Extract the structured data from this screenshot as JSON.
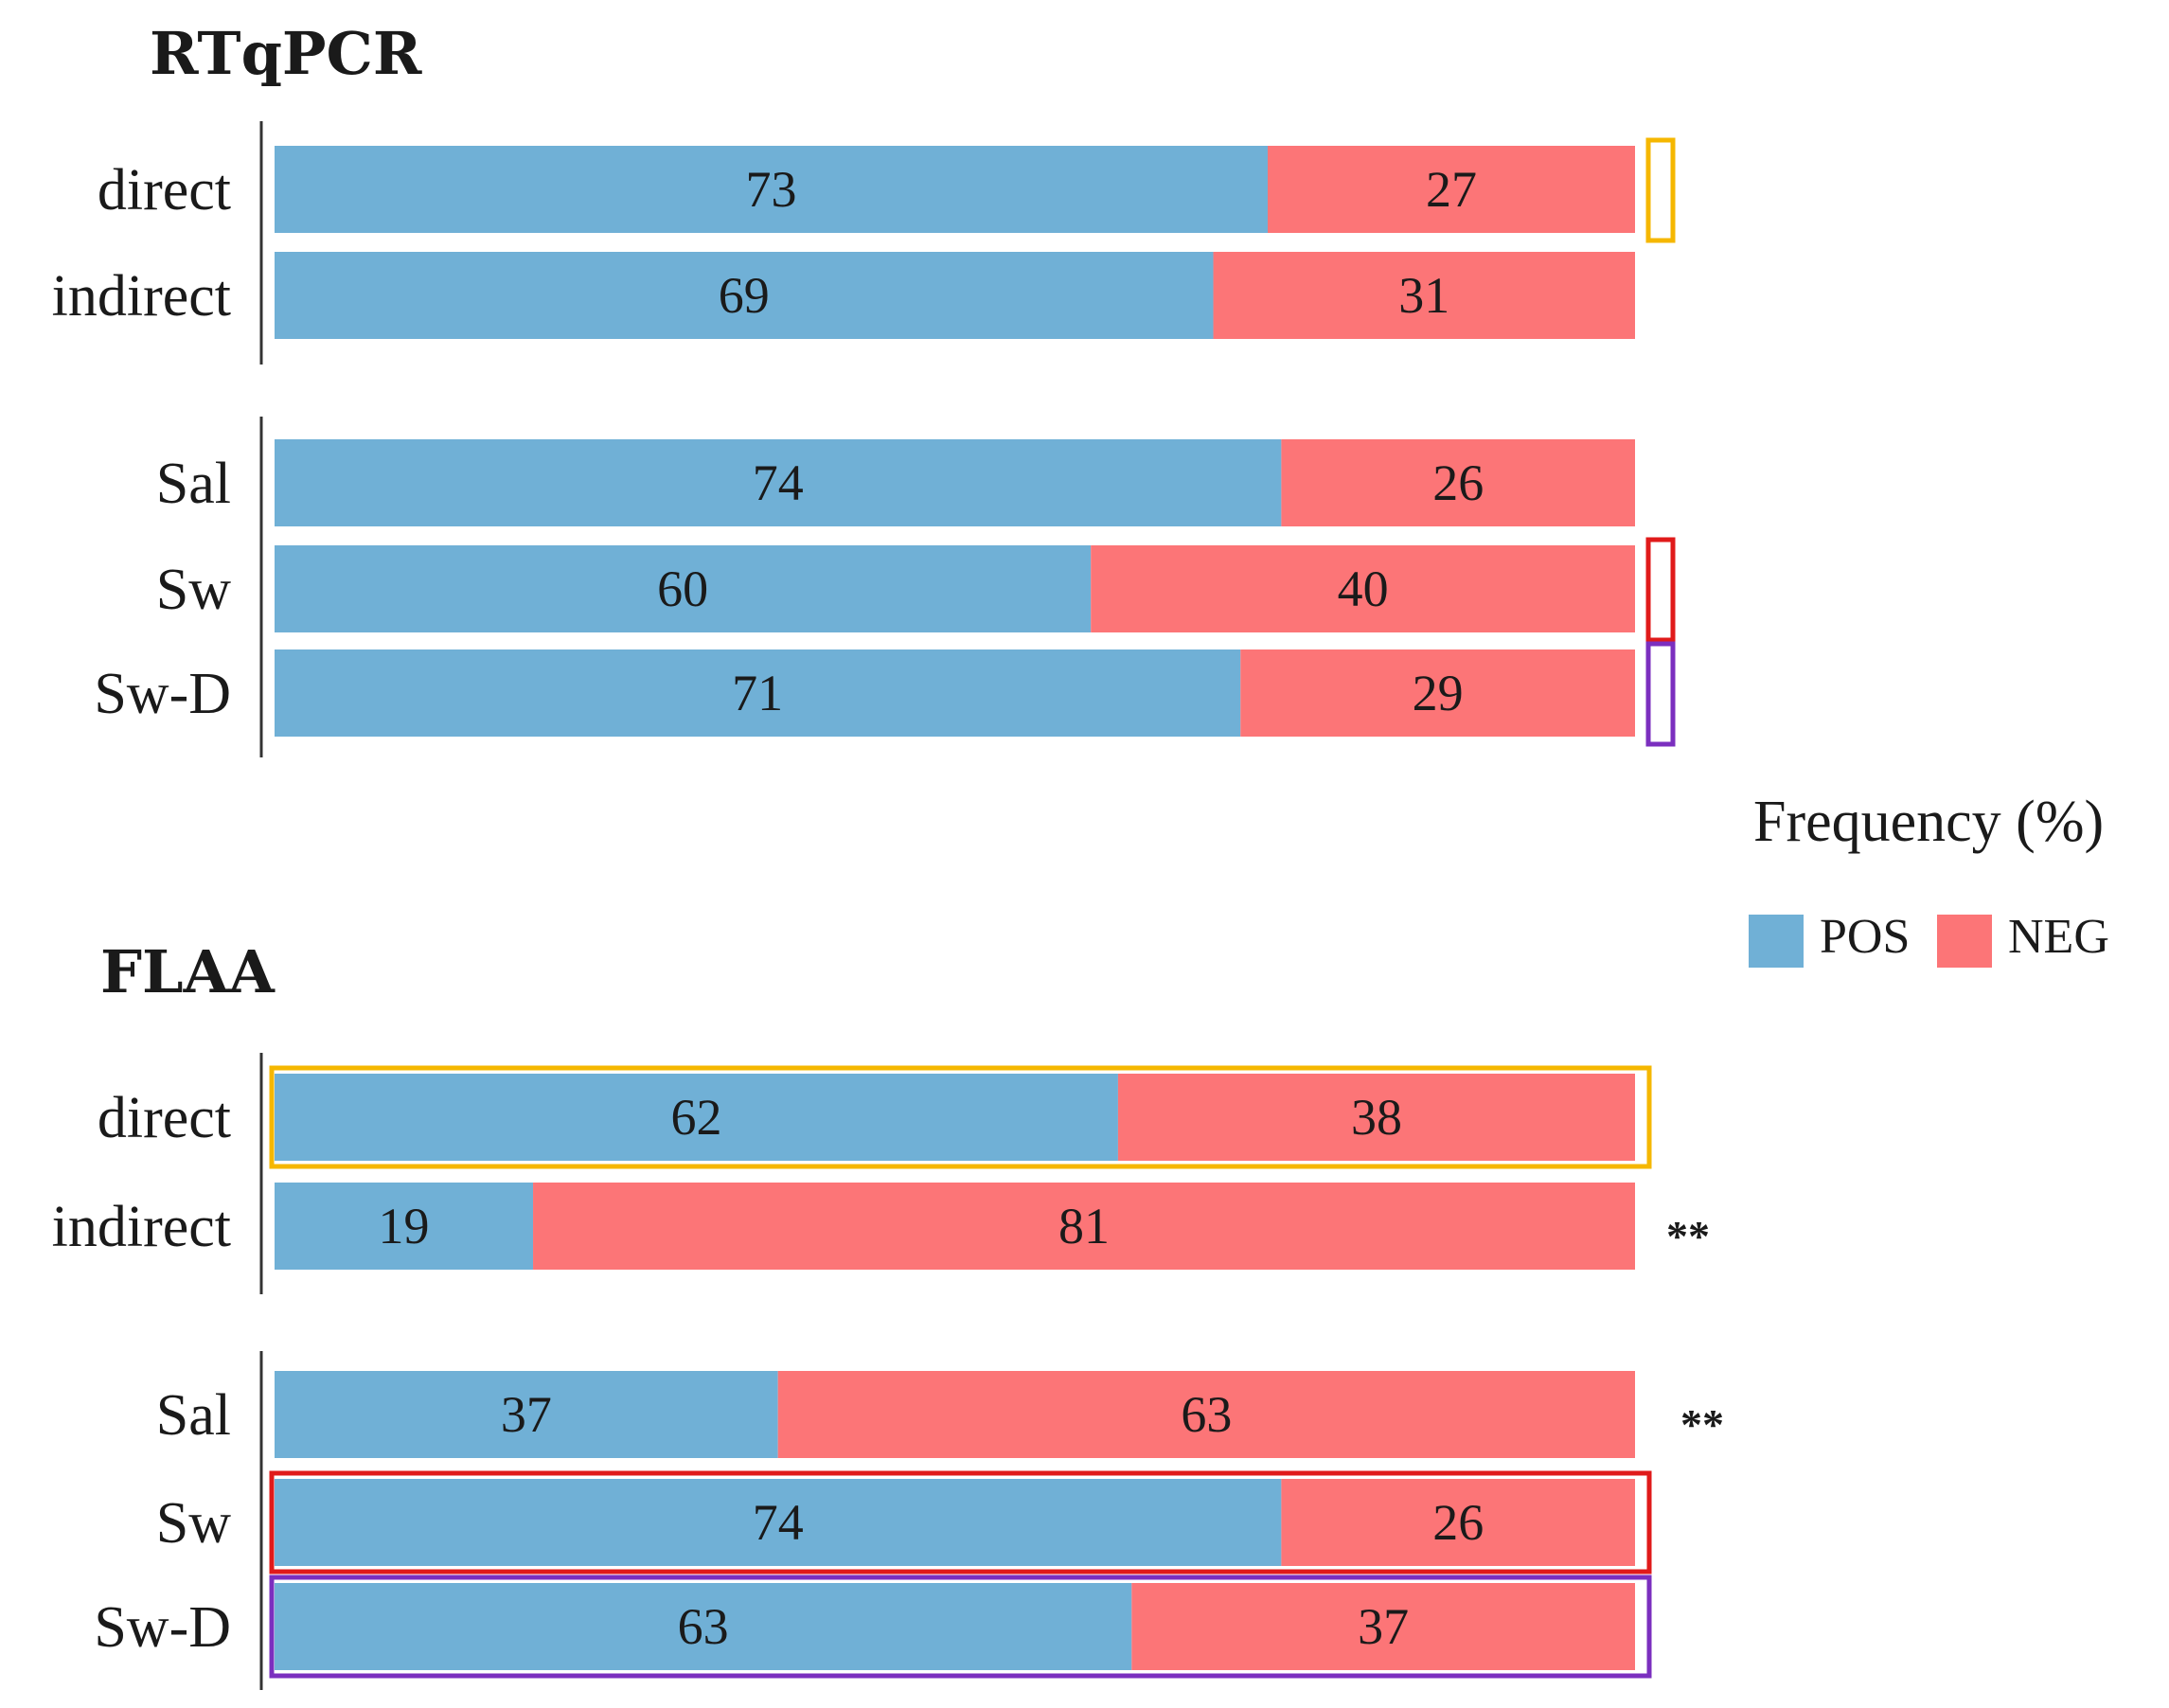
{
  "legend": {
    "title": "Frequency (%)",
    "items": [
      {
        "name": "POS",
        "color": "#70b0d6"
      },
      {
        "name": "NEG",
        "color": "#fc7577"
      }
    ]
  },
  "highlight_colors": {
    "direct": "#f5b700",
    "Sw": "#e01a1a",
    "Sw-D": "#7b2fbf"
  },
  "chart_data": [
    {
      "type": "bar",
      "orientation": "horizontal",
      "stacked": true,
      "title": "RTqPCR",
      "categories": [
        "direct",
        "indirect",
        "Sal",
        "Sw",
        "Sw-D"
      ],
      "groups": [
        [
          "direct",
          "indirect"
        ],
        [
          "Sal",
          "Sw",
          "Sw-D"
        ]
      ],
      "series": [
        {
          "name": "POS",
          "values": [
            73,
            69,
            74,
            60,
            71
          ]
        },
        {
          "name": "NEG",
          "values": [
            27,
            31,
            26,
            40,
            29
          ]
        }
      ],
      "significance": [
        "",
        "",
        "",
        "",
        ""
      ],
      "highlighted": [
        "direct",
        "Sw",
        "Sw-D"
      ],
      "xlim": [
        0,
        100
      ]
    },
    {
      "type": "bar",
      "orientation": "horizontal",
      "stacked": true,
      "title": "FLAA",
      "categories": [
        "direct",
        "indirect",
        "Sal",
        "Sw",
        "Sw-D"
      ],
      "groups": [
        [
          "direct",
          "indirect"
        ],
        [
          "Sal",
          "Sw",
          "Sw-D"
        ]
      ],
      "series": [
        {
          "name": "POS",
          "values": [
            62,
            19,
            37,
            74,
            63
          ]
        },
        {
          "name": "NEG",
          "values": [
            38,
            81,
            63,
            26,
            37
          ]
        }
      ],
      "significance": [
        "",
        "**",
        "**",
        "",
        ""
      ],
      "highlighted": [
        "direct",
        "Sw",
        "Sw-D"
      ],
      "xlim": [
        0,
        100
      ]
    }
  ]
}
